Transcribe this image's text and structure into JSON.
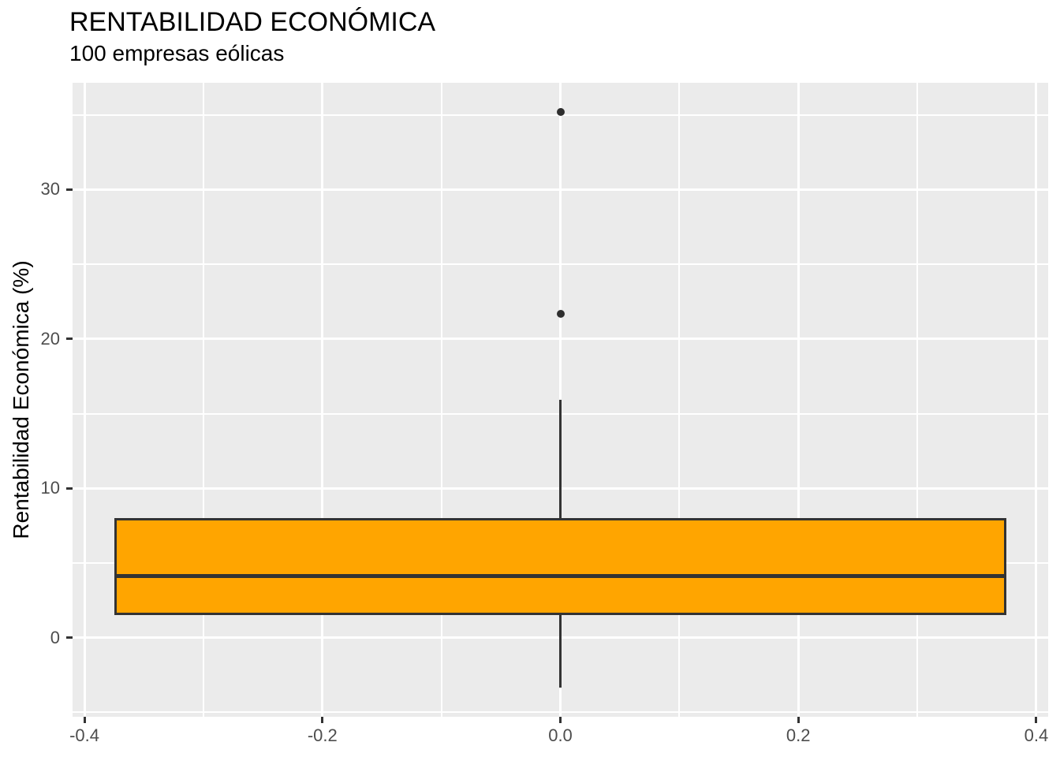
{
  "colors": {
    "panel_bg": "#EBEBEB",
    "gridline": "#FFFFFF",
    "box_fill": "#FFA500",
    "box_border": "#333333",
    "median_line": "#333333",
    "whisker": "#333333",
    "outlier": "#2E2E2E",
    "tick_mark": "#333333",
    "tick_label": "#4D4D4D",
    "title_text": "#000000"
  },
  "chart_data": {
    "type": "boxplot",
    "title": "RENTABILIDAD ECONÓMICA",
    "subtitle": "100 empresas eólicas",
    "xlabel": "",
    "ylabel": "Rentabilidad Económica (%)",
    "xlim": [
      -0.41,
      0.41
    ],
    "ylim": [
      -5.3,
      37.15
    ],
    "x_major_ticks": [
      -0.4,
      -0.2,
      0.0,
      0.2,
      0.4
    ],
    "x_tick_labels": [
      "-0.4",
      "-0.2",
      "0.0",
      "0.2",
      "0.4"
    ],
    "x_minor_ticks": [
      -0.3,
      -0.1,
      0.1,
      0.3
    ],
    "y_major_ticks": [
      0,
      10,
      20,
      30
    ],
    "y_tick_labels": [
      "0",
      "10",
      "20",
      "30"
    ],
    "y_minor_ticks": [
      -5,
      5,
      15,
      25,
      35
    ],
    "grid": "major and minor white gridlines on gray panel",
    "legend_position": "none",
    "series": [
      {
        "name": "100 empresas eólicas",
        "x_center": 0,
        "box_half_width": 0.375,
        "whisker_low": -3.35,
        "q1": 1.5,
        "median": 4.15,
        "q3": 8.0,
        "whisker_high": 15.9,
        "outliers": [
          21.7,
          35.2
        ]
      }
    ]
  }
}
